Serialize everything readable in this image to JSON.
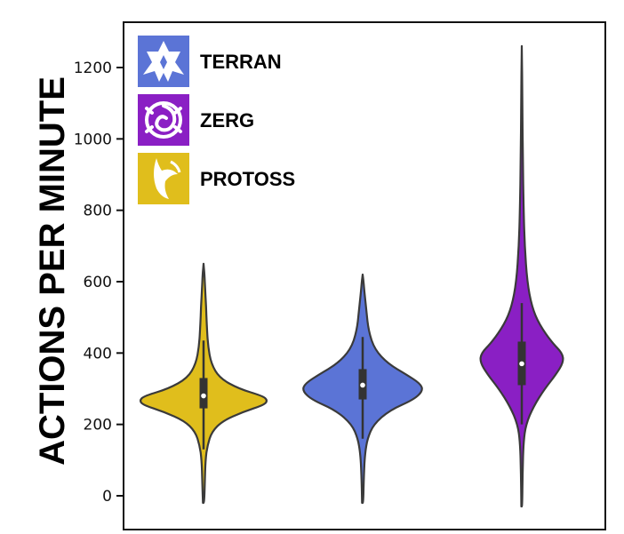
{
  "chart_data": {
    "type": "violin",
    "ylabel": "ACTIONS PER MINUTE",
    "ylim": [
      -80,
      1340
    ],
    "yticks": [
      0,
      200,
      400,
      600,
      800,
      1000,
      1200
    ],
    "ytick_labels": [
      "0",
      "200",
      "400",
      "600",
      "800",
      "1000",
      "1200"
    ],
    "grid": false,
    "legend_position": "top-left",
    "legend": [
      {
        "name": "TERRAN",
        "color": "#5b74d6",
        "icon": "terran-emblem-icon"
      },
      {
        "name": "ZERG",
        "color": "#8a1fc4",
        "icon": "zerg-emblem-icon"
      },
      {
        "name": "PROTOSS",
        "color": "#e0be1c",
        "icon": "protoss-emblem-icon"
      }
    ],
    "series": [
      {
        "name": "PROTOSS",
        "color": "#e0be1c",
        "min": -20,
        "q1": 245,
        "median": 280,
        "q3": 330,
        "max": 650,
        "whisker_low": 130,
        "whisker_high": 435,
        "density": [
          [
            -20,
            0.01
          ],
          [
            40,
            0.02
          ],
          [
            100,
            0.03
          ],
          [
            140,
            0.06
          ],
          [
            180,
            0.13
          ],
          [
            210,
            0.3
          ],
          [
            235,
            0.62
          ],
          [
            255,
            0.95
          ],
          [
            268,
            1.0
          ],
          [
            280,
            0.92
          ],
          [
            300,
            0.55
          ],
          [
            330,
            0.25
          ],
          [
            370,
            0.12
          ],
          [
            420,
            0.07
          ],
          [
            480,
            0.05
          ],
          [
            530,
            0.04
          ],
          [
            580,
            0.025
          ],
          [
            620,
            0.015
          ],
          [
            650,
            0.0
          ]
        ]
      },
      {
        "name": "TERRAN",
        "color": "#5b74d6",
        "min": -20,
        "q1": 270,
        "median": 310,
        "q3": 355,
        "max": 620,
        "whisker_low": 160,
        "whisker_high": 445,
        "density": [
          [
            -20,
            0.01
          ],
          [
            60,
            0.02
          ],
          [
            120,
            0.04
          ],
          [
            160,
            0.08
          ],
          [
            200,
            0.18
          ],
          [
            240,
            0.45
          ],
          [
            270,
            0.85
          ],
          [
            295,
            1.0
          ],
          [
            315,
            0.95
          ],
          [
            340,
            0.72
          ],
          [
            370,
            0.42
          ],
          [
            410,
            0.2
          ],
          [
            460,
            0.1
          ],
          [
            520,
            0.06
          ],
          [
            570,
            0.03
          ],
          [
            600,
            0.015
          ],
          [
            620,
            0.0
          ]
        ]
      },
      {
        "name": "ZERG",
        "color": "#8a1fc4",
        "min": -30,
        "q1": 310,
        "median": 370,
        "q3": 432,
        "max": 1260,
        "whisker_low": 200,
        "whisker_high": 540,
        "density": [
          [
            -30,
            0.01
          ],
          [
            60,
            0.02
          ],
          [
            150,
            0.04
          ],
          [
            200,
            0.1
          ],
          [
            250,
            0.28
          ],
          [
            300,
            0.55
          ],
          [
            340,
            0.82
          ],
          [
            375,
            1.0
          ],
          [
            400,
            0.97
          ],
          [
            430,
            0.72
          ],
          [
            480,
            0.42
          ],
          [
            530,
            0.24
          ],
          [
            600,
            0.13
          ],
          [
            700,
            0.07
          ],
          [
            800,
            0.045
          ],
          [
            950,
            0.025
          ],
          [
            1100,
            0.015
          ],
          [
            1260,
            0.0
          ]
        ]
      }
    ]
  }
}
